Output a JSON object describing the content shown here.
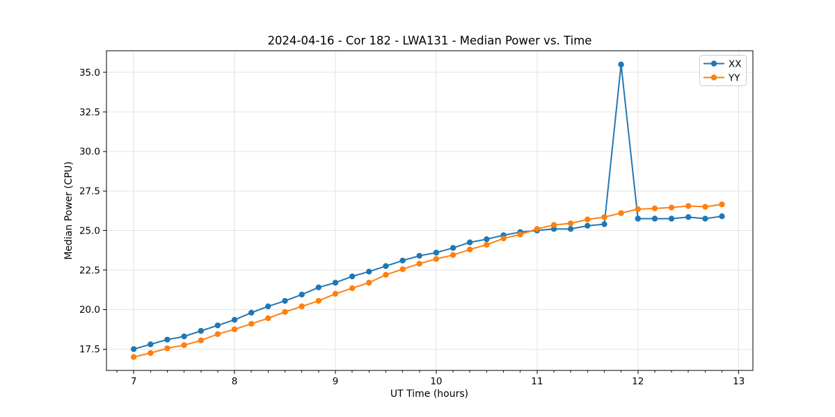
{
  "chart_data": {
    "type": "line",
    "title": "2024-04-16 - Cor 182 - LWA131 - Median Power vs. Time",
    "xlabel": "UT Time (hours)",
    "ylabel": "Median Power (CPU)",
    "xlim": [
      6.73,
      13.14
    ],
    "ylim": [
      16.15,
      36.37
    ],
    "grid": true,
    "legend_position": "upper right",
    "x_ticks": [
      7,
      8,
      9,
      10,
      11,
      12,
      13
    ],
    "x_tick_labels": [
      "7",
      "8",
      "9",
      "10",
      "11",
      "12",
      "13"
    ],
    "x_minor_tick_step": 0.1667,
    "y_ticks": [
      17.5,
      20.0,
      22.5,
      25.0,
      27.5,
      30.0,
      32.5,
      35.0
    ],
    "y_tick_labels": [
      "17.5",
      "20.0",
      "22.5",
      "25.0",
      "27.5",
      "30.0",
      "32.5",
      "35.0"
    ],
    "x": [
      7.0,
      7.167,
      7.333,
      7.5,
      7.667,
      7.833,
      8.0,
      8.167,
      8.333,
      8.5,
      8.667,
      8.833,
      9.0,
      9.167,
      9.333,
      9.5,
      9.667,
      9.833,
      10.0,
      10.167,
      10.333,
      10.5,
      10.667,
      10.833,
      11.0,
      11.167,
      11.333,
      11.5,
      11.667,
      11.833,
      12.0,
      12.167,
      12.333,
      12.5,
      12.667,
      12.833
    ],
    "series": [
      {
        "name": "XX",
        "color": "#1f77b4",
        "values": [
          17.5,
          17.8,
          18.1,
          18.3,
          18.65,
          19.0,
          19.35,
          19.8,
          20.2,
          20.55,
          20.95,
          21.4,
          21.7,
          22.1,
          22.4,
          22.75,
          23.1,
          23.4,
          23.6,
          23.9,
          24.25,
          24.45,
          24.7,
          24.9,
          25.0,
          25.1,
          25.1,
          25.3,
          25.4,
          35.5,
          25.75,
          25.75,
          25.75,
          25.85,
          25.75,
          25.9
        ]
      },
      {
        "name": "YY",
        "color": "#ff7f0e",
        "values": [
          17.0,
          17.25,
          17.55,
          17.75,
          18.05,
          18.45,
          18.75,
          19.1,
          19.45,
          19.85,
          20.2,
          20.55,
          21.0,
          21.35,
          21.7,
          22.2,
          22.55,
          22.9,
          23.2,
          23.45,
          23.8,
          24.1,
          24.5,
          24.75,
          25.1,
          25.35,
          25.45,
          25.7,
          25.85,
          26.1,
          26.35,
          26.4,
          26.45,
          26.55,
          26.5,
          26.65
        ]
      }
    ],
    "style": {
      "grid_color": "#e3e3e3",
      "spine_color": "#000000",
      "background": "#ffffff",
      "legend_border": "#cccccc"
    }
  }
}
